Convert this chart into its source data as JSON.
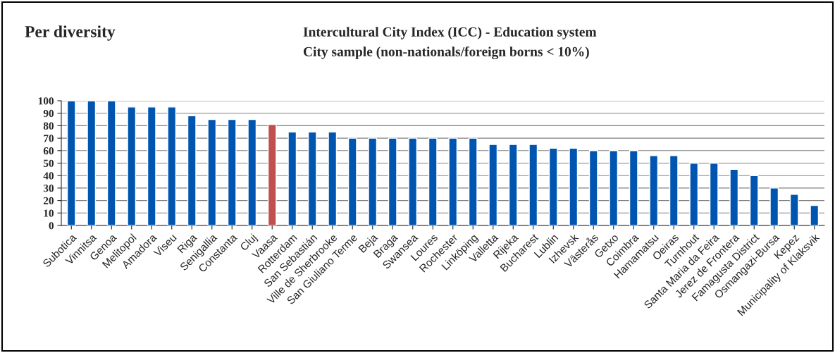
{
  "chart_data": {
    "type": "bar",
    "title": "Intercultural City Index (ICC) - Education system",
    "subtitle": "City sample (non-nationals/foreign borns < 10%)",
    "annotations": [
      "Per diversity"
    ],
    "categories": [
      "Subotica",
      "Vinnitsa",
      "Genoa",
      "Melitopol",
      "Amadora",
      "Viseu",
      "Riga",
      "Senigallia",
      "Constanta",
      "Cluj",
      "Vaasa",
      "Rotterdam",
      "San Sebastián",
      "Ville de Sherbrooke",
      "San Giuliano Terme",
      "Beja",
      "Braga",
      "Swansea",
      "Loures",
      "Rochester",
      "Linköping",
      "Valletta",
      "Rijeka",
      "Bucharest",
      "Lublin",
      "Izhevsk",
      "Västerås",
      "Getxo",
      "Coimbra",
      "Hamamatsu",
      "Oeiras",
      "Turnhout",
      "Santa Maria da Feira",
      "Jerez de Frontera",
      "Famagusta District",
      "Osmangazi-Bursa",
      "Kepez",
      "Municipality of Klaksvik"
    ],
    "values": [
      100,
      100,
      100,
      95,
      95,
      95,
      88,
      85,
      85,
      85,
      81,
      75,
      75,
      75,
      70,
      70,
      70,
      70,
      70,
      70,
      70,
      65,
      65,
      65,
      62,
      62,
      60,
      60,
      60,
      56,
      56,
      50,
      50,
      45,
      40,
      30,
      25,
      16
    ],
    "colors": [
      "#0055b0",
      "#0055b0",
      "#0055b0",
      "#0055b0",
      "#0055b0",
      "#0055b0",
      "#0055b0",
      "#0055b0",
      "#0055b0",
      "#0055b0",
      "#c0504d",
      "#0055b0",
      "#0055b0",
      "#0055b0",
      "#0055b0",
      "#0055b0",
      "#0055b0",
      "#0055b0",
      "#0055b0",
      "#0055b0",
      "#0055b0",
      "#0055b0",
      "#0055b0",
      "#0055b0",
      "#0055b0",
      "#0055b0",
      "#0055b0",
      "#0055b0",
      "#0055b0",
      "#0055b0",
      "#0055b0",
      "#0055b0",
      "#0055b0",
      "#0055b0",
      "#0055b0",
      "#0055b0",
      "#0055b0",
      "#0055b0"
    ],
    "ylim": [
      0,
      100
    ],
    "yticks": [
      0,
      10,
      20,
      30,
      40,
      50,
      60,
      70,
      80,
      90,
      100
    ],
    "grid": "y",
    "legend": false
  }
}
